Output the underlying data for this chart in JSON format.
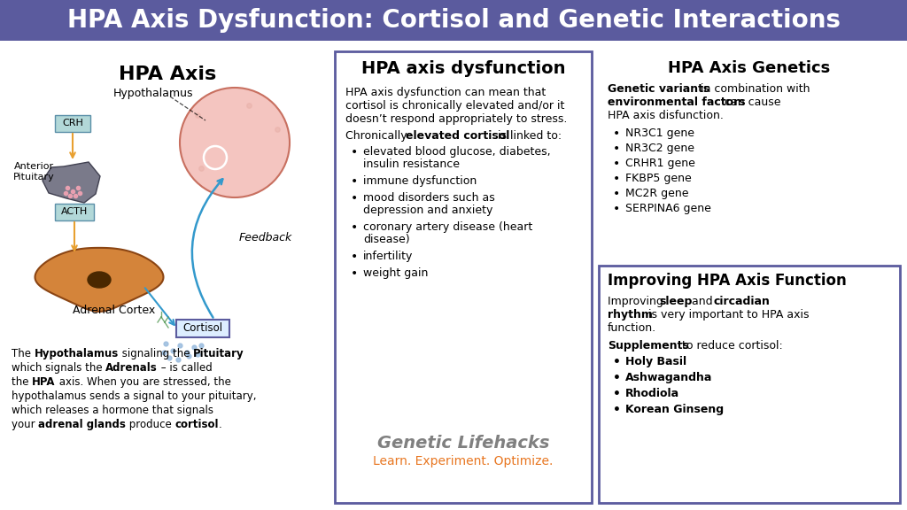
{
  "title": "HPA Axis Dysfunction: Cortisol and Genetic Interactions",
  "title_bg_color": "#5b5b9e",
  "title_text_color": "#ffffff",
  "bg_color": "#ffffff",
  "panel_border_color": "#5b5b9e",
  "left_title": "HPA Axis",
  "middle_title": "HPA axis dysfunction",
  "middle_intro": "HPA axis dysfunction can mean that\ncortisol is chronically elevated and/or it\ndoesn’t respond appropriately to stress.",
  "middle_bullets": [
    "elevated blood glucose, diabetes,\ninsulin resistance",
    "immune dysfunction",
    "mood disorders such as\ndepression and anxiety",
    "coronary artery disease (heart\ndisease)",
    "infertility",
    "weight gain"
  ],
  "right_title": "HPA Axis Genetics",
  "right_bullets": [
    "NR3C1 gene",
    "NR3C2 gene",
    "CRHR1 gene",
    "FKBP5 gene",
    "MC2R gene",
    "SERPINA6 gene"
  ],
  "bottom_right_title": "Improving HPA Axis Function",
  "bottom_right_bullets": [
    "Holy Basil",
    "Ashwagandha",
    "Rhodiola",
    "Korean Ginseng"
  ],
  "brand_name": "Genetic Lifehacks",
  "brand_tagline": "Learn. Experiment. Optimize.",
  "brand_name_color": "#808080",
  "brand_tagline_color": "#e87722"
}
